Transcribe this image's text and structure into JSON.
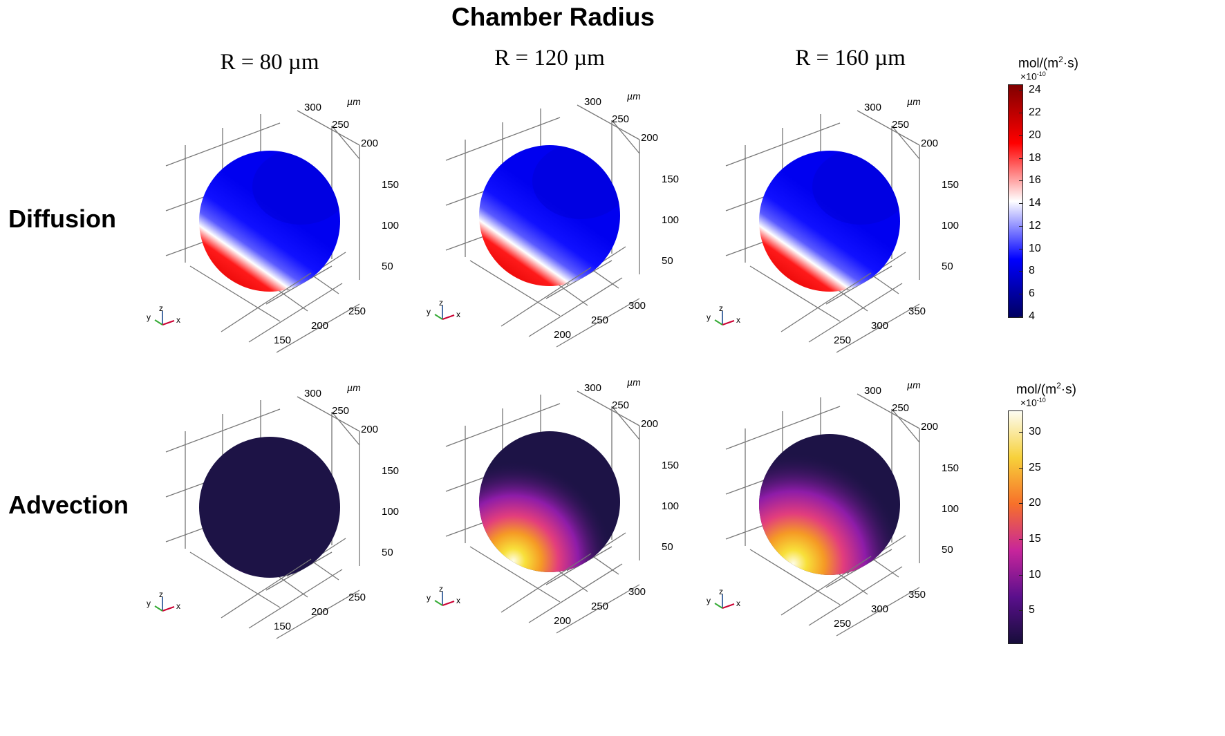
{
  "title": "Chamber Radius",
  "columns": [
    {
      "label": "R = 80 µm"
    },
    {
      "label": "R = 120 µm"
    },
    {
      "label": "R = 160 µm"
    }
  ],
  "rows": [
    {
      "label": "Diffusion",
      "colormap": "blue-white-red"
    },
    {
      "label": "Advection",
      "colormap": "inferno"
    }
  ],
  "axis_unit": "µm",
  "triad": {
    "x": "x",
    "y": "y",
    "z": "z"
  },
  "panel_ticks": [
    {
      "top": [
        "300",
        "250",
        "200"
      ],
      "right": [
        "150",
        "100",
        "50"
      ],
      "bottom": [
        "250",
        "200",
        "150"
      ]
    },
    {
      "top": [
        "300",
        "250",
        "200"
      ],
      "right": [
        "150",
        "100",
        "50"
      ],
      "bottom": [
        "300",
        "250",
        "200"
      ]
    },
    {
      "top": [
        "300",
        "250",
        "200"
      ],
      "right": [
        "150",
        "100",
        "50"
      ],
      "bottom": [
        "350",
        "300",
        "250"
      ]
    }
  ],
  "colorbars": [
    {
      "unit_base": "mol/(m",
      "unit_sup": "2",
      "unit_end": "·s)",
      "exponent": "×10-10",
      "ticks": [
        "24",
        "22",
        "20",
        "18",
        "16",
        "14",
        "12",
        "10",
        "8",
        "6",
        "4"
      ],
      "range": [
        4,
        24.5
      ],
      "colors": [
        "#000060",
        "#0000ff",
        "#ffffff",
        "#ff0000",
        "#800000"
      ]
    },
    {
      "unit_base": "mol/(m",
      "unit_sup": "2",
      "unit_end": "·s)",
      "exponent": "×10-10",
      "ticks": [
        "30",
        "25",
        "20",
        "15",
        "10",
        "5"
      ],
      "range": [
        0.5,
        33
      ],
      "colors": [
        "#170d3a",
        "#5a0f8c",
        "#c7259b",
        "#f7702a",
        "#f7d13a",
        "#fcfcf2"
      ]
    }
  ]
}
